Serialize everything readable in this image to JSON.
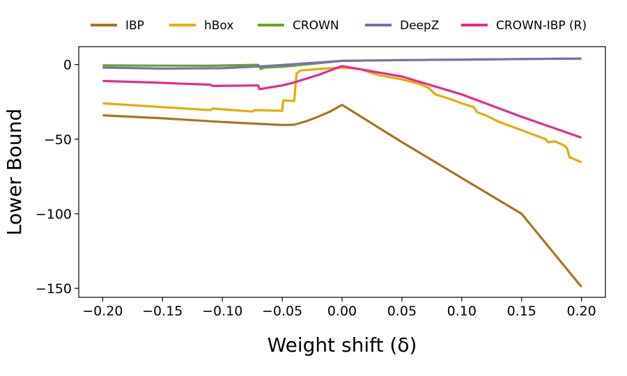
{
  "chart_data": {
    "type": "line",
    "title": "",
    "xlabel": "Weight shift (δ)",
    "ylabel": "Lower Bound",
    "xlim": [
      -0.22,
      0.22
    ],
    "ylim": [
      -156,
      12
    ],
    "xticks": [
      -0.2,
      -0.15,
      -0.1,
      -0.05,
      0.0,
      0.05,
      0.1,
      0.15,
      0.2
    ],
    "xtick_labels": [
      "−0.20",
      "−0.15",
      "−0.10",
      "−0.05",
      "0.00",
      "0.05",
      "0.10",
      "0.15",
      "0.20"
    ],
    "yticks": [
      0,
      -50,
      -100,
      -150
    ],
    "ytick_labels": [
      "0",
      "−50",
      "−100",
      "−150"
    ],
    "grid": false,
    "legend_position": "top",
    "series": [
      {
        "name": "IBP",
        "color": "#a6761d",
        "points": [
          [
            -0.2,
            -34
          ],
          [
            -0.15,
            -36
          ],
          [
            -0.1,
            -38.5
          ],
          [
            -0.05,
            -40.5
          ],
          [
            -0.04,
            -40.3
          ],
          [
            -0.03,
            -38
          ],
          [
            -0.02,
            -35
          ],
          [
            -0.01,
            -31.5
          ],
          [
            0.0,
            -27
          ],
          [
            0.05,
            -52
          ],
          [
            0.1,
            -76
          ],
          [
            0.15,
            -100
          ],
          [
            0.2,
            -149
          ]
        ]
      },
      {
        "name": "hBox",
        "color": "#e6ab02",
        "points": [
          [
            -0.2,
            -26
          ],
          [
            -0.15,
            -28.5
          ],
          [
            -0.11,
            -30.5
          ],
          [
            -0.108,
            -29.5
          ],
          [
            -0.075,
            -31.5
          ],
          [
            -0.073,
            -30.5
          ],
          [
            -0.05,
            -31
          ],
          [
            -0.049,
            -24
          ],
          [
            -0.04,
            -24.5
          ],
          [
            -0.038,
            -6
          ],
          [
            -0.035,
            -4
          ],
          [
            -0.02,
            -3
          ],
          [
            0.0,
            -2
          ],
          [
            0.015,
            -3
          ],
          [
            0.03,
            -7
          ],
          [
            0.05,
            -10
          ],
          [
            0.065,
            -13
          ],
          [
            0.072,
            -15.5
          ],
          [
            0.078,
            -20
          ],
          [
            0.09,
            -23
          ],
          [
            0.1,
            -26
          ],
          [
            0.11,
            -28.5
          ],
          [
            0.113,
            -32
          ],
          [
            0.12,
            -34
          ],
          [
            0.13,
            -38
          ],
          [
            0.14,
            -41
          ],
          [
            0.15,
            -44
          ],
          [
            0.16,
            -47
          ],
          [
            0.17,
            -50
          ],
          [
            0.172,
            -52
          ],
          [
            0.178,
            -51.5
          ],
          [
            0.185,
            -54
          ],
          [
            0.188,
            -56
          ],
          [
            0.19,
            -62
          ],
          [
            0.2,
            -65.5
          ]
        ]
      },
      {
        "name": "CROWN",
        "color": "#66a61e",
        "points": [
          [
            -0.2,
            -0.5
          ],
          [
            -0.16,
            -0.7
          ],
          [
            -0.11,
            -0.8
          ],
          [
            -0.07,
            -0.2
          ],
          [
            -0.068,
            -3
          ],
          [
            -0.065,
            -2
          ],
          [
            -0.05,
            -1.5
          ],
          [
            0.0,
            2.5
          ],
          [
            0.05,
            3
          ],
          [
            0.1,
            3.3
          ],
          [
            0.15,
            3.7
          ],
          [
            0.2,
            4
          ]
        ]
      },
      {
        "name": "DeepZ",
        "color": "#7570b3",
        "points": [
          [
            -0.2,
            -2
          ],
          [
            -0.15,
            -2.7
          ],
          [
            -0.1,
            -2.4
          ],
          [
            -0.07,
            -1.3
          ],
          [
            -0.05,
            -0.3
          ],
          [
            0.0,
            2.5
          ],
          [
            0.05,
            3
          ],
          [
            0.1,
            3.3
          ],
          [
            0.15,
            3.7
          ],
          [
            0.2,
            4
          ]
        ]
      },
      {
        "name": "CROWN-IBP (R)",
        "color": "#e7298a",
        "points": [
          [
            -0.2,
            -11
          ],
          [
            -0.16,
            -12
          ],
          [
            -0.11,
            -13.5
          ],
          [
            -0.108,
            -14.3
          ],
          [
            -0.07,
            -14
          ],
          [
            -0.069,
            -16.5
          ],
          [
            -0.05,
            -14
          ],
          [
            -0.04,
            -12
          ],
          [
            -0.02,
            -7
          ],
          [
            0.0,
            -1
          ],
          [
            0.05,
            -8
          ],
          [
            0.1,
            -20
          ],
          [
            0.15,
            -35
          ],
          [
            0.2,
            -49
          ]
        ]
      }
    ]
  }
}
